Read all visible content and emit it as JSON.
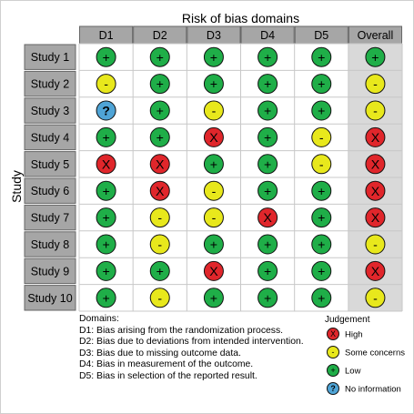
{
  "title": "Risk of bias domains",
  "y_axis_label": "Study",
  "columns": [
    "D1",
    "D2",
    "D3",
    "D4",
    "D5",
    "Overall"
  ],
  "studies": [
    {
      "name": "Study 1",
      "judgements": [
        "low",
        "low",
        "low",
        "low",
        "low",
        "low"
      ]
    },
    {
      "name": "Study 2",
      "judgements": [
        "some",
        "low",
        "low",
        "low",
        "low",
        "some"
      ]
    },
    {
      "name": "Study 3",
      "judgements": [
        "noinfo",
        "low",
        "some",
        "low",
        "low",
        "some"
      ]
    },
    {
      "name": "Study 4",
      "judgements": [
        "low",
        "low",
        "high",
        "low",
        "some",
        "high"
      ]
    },
    {
      "name": "Study 5",
      "judgements": [
        "high",
        "high",
        "low",
        "low",
        "some",
        "high"
      ]
    },
    {
      "name": "Study 6",
      "judgements": [
        "low",
        "high",
        "some",
        "low",
        "low",
        "high"
      ]
    },
    {
      "name": "Study 7",
      "judgements": [
        "low",
        "some",
        "some",
        "high",
        "low",
        "high"
      ]
    },
    {
      "name": "Study 8",
      "judgements": [
        "low",
        "some",
        "low",
        "low",
        "low",
        "some"
      ]
    },
    {
      "name": "Study 9",
      "judgements": [
        "low",
        "low",
        "high",
        "low",
        "low",
        "high"
      ]
    },
    {
      "name": "Study 10",
      "judgements": [
        "low",
        "some",
        "low",
        "low",
        "low",
        "some"
      ]
    }
  ],
  "domains_heading": "Domains:",
  "domain_descriptions": [
    "D1: Bias arising from the randomization process.",
    "D2: Bias due to deviations from intended intervention.",
    "D3: Bias due to missing outcome data.",
    "D4: Bias in measurement of the outcome.",
    "D5: Bias in selection of the reported result."
  ],
  "judgement_heading": "Judgement",
  "judgement_types": {
    "high": {
      "symbol": "X",
      "label": "High",
      "color": "#e0262b"
    },
    "some": {
      "symbol": "-",
      "label": "Some concerns",
      "color": "#e8e81c"
    },
    "low": {
      "symbol": "+",
      "label": "Low",
      "color": "#1fae48"
    },
    "noinfo": {
      "symbol": "?",
      "label": "No information",
      "color": "#4fa4d6"
    }
  },
  "legend_order": [
    "high",
    "some",
    "low",
    "noinfo"
  ],
  "colors": {
    "header_fill": "#a6a6a6",
    "study_fill": "#a6a6a6",
    "overall_fill": "#d9d9d9",
    "cell_border": "#666666"
  }
}
